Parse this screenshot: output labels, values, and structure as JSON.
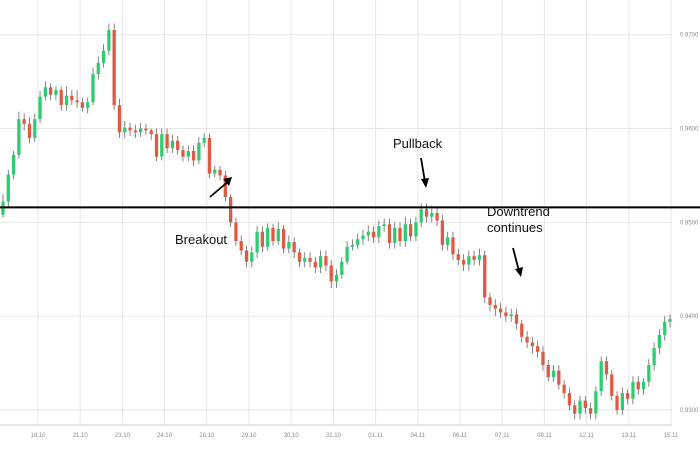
{
  "chart_data": {
    "type": "candlestick",
    "title": "",
    "xlabel": "",
    "ylabel": "",
    "x_ticks": [
      "18.10",
      "21.10",
      "23.10",
      "24.10",
      "28.10",
      "29.10",
      "30.10",
      "31.10",
      "01.11",
      "04.11",
      "06.11",
      "07.11",
      "08.11",
      "12.11",
      "13.11",
      "15.11"
    ],
    "y_ticks": [
      0.93,
      0.94,
      0.95,
      0.96,
      0.97
    ],
    "y_tick_labels": [
      "0.9300",
      "0.9400",
      "0.9500",
      "0.9600",
      "0.9700"
    ],
    "ylim": [
      0.9284,
      0.9737
    ],
    "grid": true,
    "horizontal_level": 0.9516,
    "candles": [
      [
        0.9508,
        0.9522,
        0.9505,
        0.953
      ],
      [
        0.9522,
        0.9551,
        0.9515,
        0.9556
      ],
      [
        0.9551,
        0.9572,
        0.9546,
        0.9576
      ],
      [
        0.9572,
        0.961,
        0.9568,
        0.9618
      ],
      [
        0.961,
        0.9605,
        0.9598,
        0.9616
      ],
      [
        0.9605,
        0.959,
        0.9584,
        0.9612
      ],
      [
        0.959,
        0.961,
        0.9586,
        0.9616
      ],
      [
        0.961,
        0.9634,
        0.9606,
        0.964
      ],
      [
        0.9634,
        0.9644,
        0.963,
        0.965
      ],
      [
        0.9644,
        0.9636,
        0.963,
        0.9648
      ],
      [
        0.9636,
        0.9641,
        0.963,
        0.9645
      ],
      [
        0.9641,
        0.9625,
        0.9619,
        0.9645
      ],
      [
        0.9625,
        0.9635,
        0.9619,
        0.9645
      ],
      [
        0.9635,
        0.963,
        0.9625,
        0.9641
      ],
      [
        0.963,
        0.9628,
        0.9622,
        0.9641
      ],
      [
        0.9628,
        0.9622,
        0.9618,
        0.9633
      ],
      [
        0.9622,
        0.9628,
        0.9616,
        0.9633
      ],
      [
        0.9628,
        0.9658,
        0.9625,
        0.9665
      ],
      [
        0.9658,
        0.967,
        0.9652,
        0.9677
      ],
      [
        0.967,
        0.9683,
        0.9665,
        0.969
      ],
      [
        0.9683,
        0.9705,
        0.9678,
        0.9712
      ],
      [
        0.9705,
        0.9625,
        0.962,
        0.9712
      ],
      [
        0.9625,
        0.9596,
        0.959,
        0.9632
      ],
      [
        0.9596,
        0.9601,
        0.959,
        0.9608
      ],
      [
        0.9601,
        0.9598,
        0.9592,
        0.9606
      ],
      [
        0.9598,
        0.9596,
        0.959,
        0.9604
      ],
      [
        0.9596,
        0.96,
        0.9591,
        0.9606
      ],
      [
        0.96,
        0.9598,
        0.9593,
        0.9605
      ],
      [
        0.9598,
        0.9594,
        0.9588,
        0.96
      ],
      [
        0.9594,
        0.957,
        0.9565,
        0.96
      ],
      [
        0.957,
        0.9594,
        0.9566,
        0.96
      ],
      [
        0.9594,
        0.9579,
        0.9574,
        0.96
      ],
      [
        0.9579,
        0.9587,
        0.9574,
        0.9593
      ],
      [
        0.9587,
        0.9577,
        0.9572,
        0.9592
      ],
      [
        0.9577,
        0.957,
        0.9565,
        0.9582
      ],
      [
        0.957,
        0.9576,
        0.9565,
        0.9582
      ],
      [
        0.9576,
        0.9566,
        0.956,
        0.9582
      ],
      [
        0.9566,
        0.9585,
        0.9562,
        0.9591
      ],
      [
        0.9585,
        0.959,
        0.958,
        0.9595
      ],
      [
        0.959,
        0.9552,
        0.9547,
        0.9595
      ],
      [
        0.9552,
        0.9556,
        0.9548,
        0.956
      ],
      [
        0.9556,
        0.955,
        0.9545,
        0.956
      ],
      [
        0.955,
        0.9527,
        0.9522,
        0.9555
      ],
      [
        0.9527,
        0.95,
        0.9495,
        0.953
      ],
      [
        0.95,
        0.948,
        0.9475,
        0.9505
      ],
      [
        0.948,
        0.947,
        0.9465,
        0.9486
      ],
      [
        0.947,
        0.9458,
        0.9452,
        0.9475
      ],
      [
        0.9458,
        0.9468,
        0.9452,
        0.9474
      ],
      [
        0.9468,
        0.949,
        0.9462,
        0.9496
      ],
      [
        0.949,
        0.9474,
        0.9468,
        0.9496
      ],
      [
        0.9474,
        0.9494,
        0.947,
        0.9499
      ],
      [
        0.9494,
        0.948,
        0.9475,
        0.9498
      ],
      [
        0.948,
        0.9493,
        0.9476,
        0.95
      ],
      [
        0.9493,
        0.9472,
        0.9467,
        0.9497
      ],
      [
        0.9472,
        0.9479,
        0.9467,
        0.9486
      ],
      [
        0.9479,
        0.9468,
        0.9462,
        0.9484
      ],
      [
        0.9468,
        0.9458,
        0.9452,
        0.9472
      ],
      [
        0.9458,
        0.9462,
        0.9452,
        0.9468
      ],
      [
        0.9462,
        0.9458,
        0.9452,
        0.9468
      ],
      [
        0.9458,
        0.9452,
        0.9446,
        0.9463
      ],
      [
        0.9452,
        0.9464,
        0.9446,
        0.947
      ],
      [
        0.9464,
        0.9454,
        0.9448,
        0.947
      ],
      [
        0.9454,
        0.9437,
        0.943,
        0.946
      ],
      [
        0.9437,
        0.9444,
        0.943,
        0.945
      ],
      [
        0.9444,
        0.9458,
        0.944,
        0.9463
      ],
      [
        0.9458,
        0.9474,
        0.9455,
        0.948
      ],
      [
        0.9474,
        0.9476,
        0.947,
        0.9482
      ],
      [
        0.9476,
        0.9482,
        0.9472,
        0.9488
      ],
      [
        0.9482,
        0.9486,
        0.9476,
        0.9492
      ],
      [
        0.9486,
        0.949,
        0.948,
        0.9497
      ],
      [
        0.949,
        0.9484,
        0.9478,
        0.9496
      ],
      [
        0.9484,
        0.9496,
        0.9478,
        0.9502
      ],
      [
        0.9496,
        0.9498,
        0.949,
        0.9504
      ],
      [
        0.9498,
        0.9478,
        0.9472,
        0.9504
      ],
      [
        0.9478,
        0.9494,
        0.9472,
        0.95
      ],
      [
        0.9494,
        0.948,
        0.9474,
        0.95
      ],
      [
        0.948,
        0.9498,
        0.9474,
        0.9506
      ],
      [
        0.9498,
        0.9485,
        0.948,
        0.9504
      ],
      [
        0.9485,
        0.95,
        0.948,
        0.9506
      ],
      [
        0.95,
        0.9514,
        0.9495,
        0.952
      ],
      [
        0.9514,
        0.9506,
        0.95,
        0.952
      ],
      [
        0.9506,
        0.951,
        0.95,
        0.9518
      ],
      [
        0.951,
        0.9502,
        0.9496,
        0.9516
      ],
      [
        0.9502,
        0.9476,
        0.947,
        0.9508
      ],
      [
        0.9476,
        0.9484,
        0.947,
        0.949
      ],
      [
        0.9484,
        0.9466,
        0.946,
        0.949
      ],
      [
        0.9466,
        0.946,
        0.9454,
        0.9472
      ],
      [
        0.946,
        0.9455,
        0.9448,
        0.9466
      ],
      [
        0.9455,
        0.9464,
        0.9448,
        0.947
      ],
      [
        0.9464,
        0.946,
        0.9454,
        0.947
      ],
      [
        0.946,
        0.9465,
        0.9454,
        0.9472
      ],
      [
        0.9465,
        0.942,
        0.9414,
        0.947
      ],
      [
        0.942,
        0.9412,
        0.9405,
        0.9425
      ],
      [
        0.9412,
        0.9408,
        0.94,
        0.9418
      ],
      [
        0.9408,
        0.9404,
        0.9398,
        0.9414
      ],
      [
        0.9404,
        0.94,
        0.9394,
        0.941
      ],
      [
        0.94,
        0.9402,
        0.9394,
        0.9408
      ],
      [
        0.9402,
        0.9392,
        0.9386,
        0.9408
      ],
      [
        0.9392,
        0.9378,
        0.9372,
        0.9396
      ],
      [
        0.9378,
        0.9372,
        0.9366,
        0.9384
      ],
      [
        0.9372,
        0.9368,
        0.936,
        0.9378
      ],
      [
        0.9368,
        0.9362,
        0.9356,
        0.9374
      ],
      [
        0.9362,
        0.9348,
        0.9342,
        0.9368
      ],
      [
        0.9348,
        0.9335,
        0.933,
        0.9353
      ],
      [
        0.9335,
        0.9342,
        0.933,
        0.9348
      ],
      [
        0.9342,
        0.9327,
        0.9322,
        0.9348
      ],
      [
        0.9327,
        0.9318,
        0.9312,
        0.9332
      ],
      [
        0.9318,
        0.9305,
        0.93,
        0.9323
      ],
      [
        0.9305,
        0.9296,
        0.929,
        0.931
      ],
      [
        0.9296,
        0.931,
        0.929,
        0.9315
      ],
      [
        0.931,
        0.9302,
        0.9296,
        0.9315
      ],
      [
        0.9302,
        0.9296,
        0.929,
        0.9308
      ],
      [
        0.9296,
        0.932,
        0.929,
        0.9325
      ],
      [
        0.932,
        0.9352,
        0.9315,
        0.9357
      ],
      [
        0.9352,
        0.9338,
        0.9332,
        0.9357
      ],
      [
        0.9338,
        0.9315,
        0.931,
        0.9343
      ],
      [
        0.9315,
        0.93,
        0.9295,
        0.932
      ],
      [
        0.93,
        0.9318,
        0.9295,
        0.9324
      ],
      [
        0.9318,
        0.9312,
        0.9306,
        0.9322
      ],
      [
        0.9312,
        0.933,
        0.9306,
        0.9336
      ],
      [
        0.933,
        0.9322,
        0.9316,
        0.9336
      ],
      [
        0.9322,
        0.933,
        0.9316,
        0.9334
      ],
      [
        0.933,
        0.9348,
        0.9325,
        0.9354
      ],
      [
        0.9348,
        0.9366,
        0.9342,
        0.9372
      ],
      [
        0.9366,
        0.938,
        0.936,
        0.9386
      ],
      [
        0.938,
        0.9394,
        0.9374,
        0.94
      ],
      [
        0.9394,
        0.9397,
        0.9388,
        0.9402
      ]
    ],
    "candle_fields": [
      "open",
      "close",
      "low",
      "high"
    ],
    "colors": {
      "up": "#2ecc71",
      "down": "#e05a43",
      "wick": "#666666",
      "level_line": "#000000",
      "grid": "#e6e6e6"
    },
    "annotations": [
      {
        "text": "Breakout",
        "candle_index": 42,
        "arrow": "up-right"
      },
      {
        "text": "Pullback",
        "candle_index": 101,
        "arrow": "down"
      },
      {
        "text": "Downtrend",
        "candle_index": 130,
        "arrow": "down"
      },
      {
        "text": "continues",
        "candle_index": 130,
        "arrow": "none"
      }
    ]
  }
}
